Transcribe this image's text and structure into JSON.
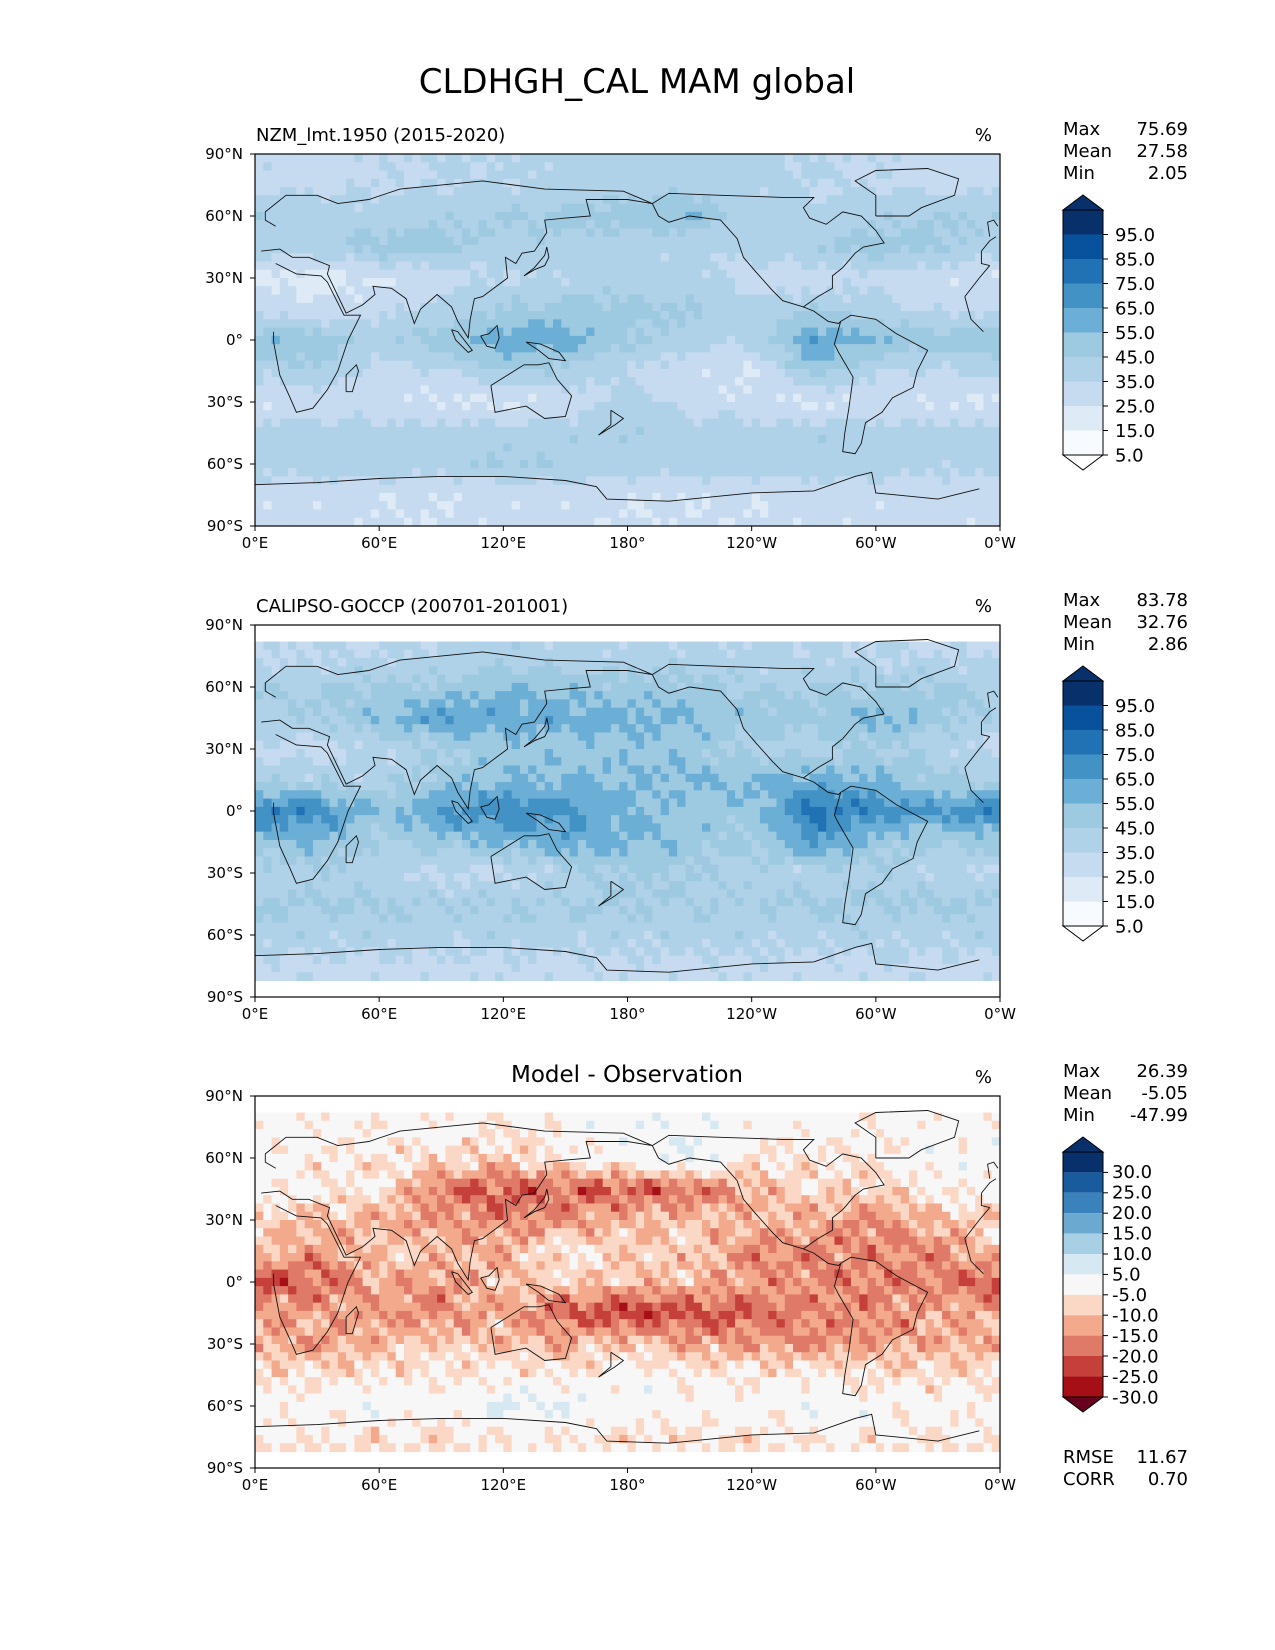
{
  "figure": {
    "title": "CLDHGH_CAL MAM global"
  },
  "colors": {
    "blues": [
      "#f7fbff",
      "#deebf7",
      "#c6dbef",
      "#b0d2e8",
      "#9ecae1",
      "#6baed6",
      "#4292c6",
      "#2171b5",
      "#08519c",
      "#08306b"
    ],
    "diff": [
      "#67001f",
      "#a50f15",
      "#c5403a",
      "#e07a68",
      "#f3aa8c",
      "#fbd8c6",
      "#f7f7f7",
      "#d6e8f1",
      "#a8d0e4",
      "#6ba9d0",
      "#3a82bb",
      "#195c9e",
      "#08306b"
    ]
  },
  "panels": [
    {
      "id": "model",
      "left_title": "NZM_lmt.1950 (2015-2020)",
      "center_title": "",
      "units": "%",
      "stats": [
        {
          "label": "Max",
          "value": "75.69"
        },
        {
          "label": "Mean",
          "value": "27.58"
        },
        {
          "label": "Min",
          "value": "2.05"
        }
      ],
      "colorbar_ticks": [
        "95.0",
        "85.0",
        "75.0",
        "65.0",
        "55.0",
        "45.0",
        "35.0",
        "25.0",
        "15.0",
        "5.0"
      ],
      "palette": "blues",
      "field": "model",
      "footer": []
    },
    {
      "id": "obs",
      "left_title": "CALIPSO-GOCCP (200701-201001)",
      "center_title": "",
      "units": "%",
      "stats": [
        {
          "label": "Max",
          "value": "83.78"
        },
        {
          "label": "Mean",
          "value": "32.76"
        },
        {
          "label": "Min",
          "value": "2.86"
        }
      ],
      "colorbar_ticks": [
        "95.0",
        "85.0",
        "75.0",
        "65.0",
        "55.0",
        "45.0",
        "35.0",
        "25.0",
        "15.0",
        "5.0"
      ],
      "palette": "blues",
      "field": "obs",
      "footer": []
    },
    {
      "id": "diff",
      "left_title": "",
      "center_title": "Model - Observation",
      "units": "%",
      "stats": [
        {
          "label": "Max",
          "value": "26.39"
        },
        {
          "label": "Mean",
          "value": "-5.05"
        },
        {
          "label": "Min",
          "value": "-47.99"
        }
      ],
      "colorbar_ticks": [
        "30.0",
        "25.0",
        "20.0",
        "15.0",
        "10.0",
        "5.0",
        "-5.0",
        "-10.0",
        "-15.0",
        "-20.0",
        "-25.0",
        "-30.0"
      ],
      "palette": "diff",
      "field": "diff",
      "footer": [
        {
          "label": "RMSE",
          "value": "11.67"
        },
        {
          "label": "CORR",
          "value": "0.70"
        }
      ]
    }
  ],
  "chart_data": {
    "type": "heatmap",
    "title": "CLDHGH_CAL MAM global",
    "projection": "equirectangular, central longitude 180",
    "xlim": [
      0,
      360
    ],
    "ylim": [
      -90,
      90
    ],
    "x_ticks": [
      "0°E",
      "60°E",
      "120°E",
      "180°",
      "120°W",
      "60°W",
      "0°W"
    ],
    "y_ticks": [
      "90°N",
      "60°N",
      "30°N",
      "0°",
      "30°S",
      "60°S",
      "90°S"
    ],
    "fields": {
      "model": {
        "lats": [
          75,
          60,
          45,
          30,
          15,
          0,
          -15,
          -30,
          -45,
          -60,
          -75
        ],
        "lons": [
          0,
          30,
          60,
          90,
          120,
          150,
          180,
          210,
          240,
          270,
          300,
          330,
          360
        ],
        "values": [
          [
            22,
            22,
            24,
            26,
            26,
            28,
            30,
            30,
            28,
            25,
            24,
            22,
            22
          ],
          [
            34,
            30,
            30,
            32,
            36,
            38,
            40,
            44,
            30,
            28,
            32,
            36,
            34
          ],
          [
            28,
            30,
            40,
            38,
            30,
            32,
            28,
            26,
            28,
            34,
            40,
            36,
            28
          ],
          [
            14,
            10,
            14,
            20,
            24,
            26,
            30,
            30,
            20,
            18,
            22,
            18,
            14
          ],
          [
            22,
            18,
            22,
            30,
            34,
            40,
            38,
            36,
            30,
            34,
            30,
            22,
            22
          ],
          [
            44,
            42,
            30,
            40,
            52,
            50,
            36,
            30,
            26,
            55,
            44,
            40,
            44
          ],
          [
            28,
            34,
            20,
            24,
            36,
            32,
            24,
            18,
            14,
            40,
            26,
            24,
            28
          ],
          [
            14,
            18,
            18,
            14,
            12,
            18,
            28,
            22,
            16,
            12,
            18,
            14,
            14
          ],
          [
            30,
            30,
            30,
            30,
            30,
            32,
            34,
            30,
            30,
            32,
            30,
            30,
            30
          ],
          [
            28,
            30,
            32,
            30,
            36,
            34,
            30,
            30,
            30,
            32,
            30,
            28,
            28
          ],
          [
            18,
            18,
            16,
            16,
            18,
            18,
            16,
            16,
            16,
            18,
            18,
            18,
            18
          ]
        ]
      },
      "obs": {
        "lats": [
          75,
          60,
          45,
          30,
          15,
          0,
          -15,
          -30,
          -45,
          -60,
          -75
        ],
        "lons": [
          0,
          30,
          60,
          90,
          120,
          150,
          180,
          210,
          240,
          270,
          300,
          330,
          360
        ],
        "values": [
          [
            24,
            24,
            26,
            28,
            30,
            30,
            28,
            28,
            28,
            26,
            26,
            24,
            24
          ],
          [
            34,
            34,
            36,
            38,
            44,
            42,
            40,
            38,
            34,
            34,
            36,
            36,
            34
          ],
          [
            30,
            34,
            44,
            56,
            50,
            52,
            48,
            46,
            40,
            40,
            48,
            40,
            30
          ],
          [
            22,
            20,
            26,
            34,
            40,
            40,
            42,
            40,
            30,
            30,
            36,
            28,
            22
          ],
          [
            30,
            32,
            30,
            40,
            46,
            44,
            46,
            44,
            46,
            50,
            46,
            38,
            30
          ],
          [
            66,
            62,
            42,
            54,
            62,
            58,
            46,
            40,
            40,
            70,
            60,
            56,
            66
          ],
          [
            40,
            46,
            34,
            40,
            48,
            52,
            48,
            40,
            34,
            56,
            42,
            36,
            40
          ],
          [
            26,
            32,
            28,
            22,
            22,
            30,
            36,
            34,
            30,
            28,
            32,
            26,
            26
          ],
          [
            36,
            36,
            36,
            34,
            34,
            36,
            36,
            34,
            34,
            36,
            36,
            36,
            36
          ],
          [
            30,
            30,
            30,
            30,
            30,
            30,
            30,
            30,
            30,
            30,
            30,
            30,
            30
          ],
          [
            22,
            22,
            22,
            22,
            22,
            22,
            22,
            22,
            22,
            22,
            22,
            22,
            22
          ]
        ]
      },
      "diff": {
        "lats": [
          75,
          60,
          45,
          30,
          15,
          0,
          -15,
          -30,
          -45,
          -60,
          -75
        ],
        "lons": [
          0,
          30,
          60,
          90,
          120,
          150,
          180,
          210,
          240,
          270,
          300,
          330,
          360
        ],
        "values": [
          [
            -2,
            -2,
            -2,
            -2,
            -4,
            -2,
            2,
            2,
            0,
            -1,
            -2,
            -2,
            -2
          ],
          [
            0,
            -4,
            -6,
            -6,
            -8,
            -4,
            0,
            6,
            -4,
            -6,
            -4,
            0,
            0
          ],
          [
            -2,
            -4,
            -4,
            -18,
            -20,
            -20,
            -20,
            -20,
            -12,
            -6,
            -8,
            -4,
            -2
          ],
          [
            -8,
            -10,
            -12,
            -14,
            -16,
            -14,
            -12,
            -10,
            -10,
            -12,
            -14,
            -10,
            -8
          ],
          [
            -8,
            -14,
            -8,
            -10,
            -12,
            -4,
            -8,
            -8,
            -16,
            -16,
            -16,
            -16,
            -8
          ],
          [
            -22,
            -20,
            -12,
            -14,
            -10,
            -8,
            -10,
            -10,
            -14,
            -15,
            -16,
            -16,
            -22
          ],
          [
            -12,
            -12,
            -14,
            -16,
            -12,
            -20,
            -24,
            -22,
            -20,
            -16,
            -16,
            -12,
            -12
          ],
          [
            -12,
            -14,
            -10,
            -8,
            -10,
            -12,
            -8,
            -12,
            -14,
            -16,
            -14,
            -12,
            -12
          ],
          [
            -6,
            -6,
            -6,
            -4,
            -4,
            -4,
            -2,
            -4,
            -4,
            -4,
            -6,
            -6,
            -6
          ],
          [
            -2,
            0,
            2,
            0,
            6,
            4,
            0,
            0,
            0,
            2,
            0,
            -2,
            -2
          ],
          [
            -4,
            -4,
            -6,
            -6,
            -4,
            -4,
            -6,
            -6,
            -6,
            -4,
            -4,
            -4,
            -4
          ]
        ]
      }
    }
  }
}
